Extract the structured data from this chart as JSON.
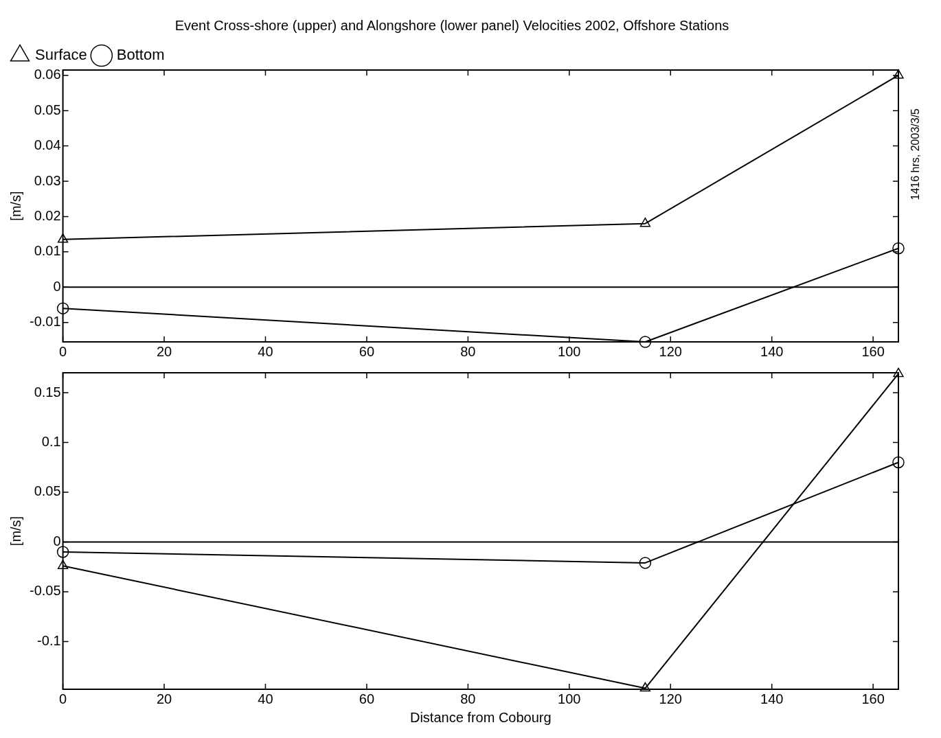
{
  "chart_data": [
    {
      "type": "line",
      "title": "Event Cross-shore (upper) and Alongshore (lower panel) Velocities 2002, Offshore Stations",
      "ylabel": "[m/s]",
      "x": [
        0,
        115,
        165
      ],
      "xlim": [
        0,
        165
      ],
      "xticks": [
        0,
        20,
        40,
        60,
        80,
        100,
        120,
        140,
        160
      ],
      "ylim": [
        -0.0155,
        0.0615
      ],
      "yticks": [
        -0.01,
        0,
        0.01,
        0.02,
        0.03,
        0.04,
        0.05,
        0.06
      ],
      "grid": false,
      "legend": "top left",
      "line_style": "solid",
      "ref_lines": [
        {
          "axis": "y",
          "value": 0,
          "color": "#000000"
        }
      ],
      "annotations": [
        "1416 hrs, 2003/3/5"
      ],
      "series": [
        {
          "name": "Surface",
          "color": "#000000",
          "marker": "triangle",
          "values": [
            0.0135,
            0.018,
            0.06
          ]
        },
        {
          "name": "Bottom",
          "color": "#000000",
          "marker": "circle",
          "values": [
            -0.006,
            -0.0155,
            0.011
          ]
        }
      ]
    },
    {
      "type": "line",
      "xlabel": "Distance from Cobourg",
      "ylabel": "[m/s]",
      "x": [
        0,
        115,
        165
      ],
      "xlim": [
        0,
        165
      ],
      "xticks": [
        0,
        20,
        40,
        60,
        80,
        100,
        120,
        140,
        160
      ],
      "ylim": [
        -0.148,
        0.17
      ],
      "yticks": [
        -0.1,
        -0.05,
        0,
        0.05,
        0.1,
        0.15
      ],
      "grid": false,
      "legend": false,
      "line_style": "solid",
      "ref_lines": [
        {
          "axis": "y",
          "value": 0,
          "color": "#000000"
        }
      ],
      "series": [
        {
          "color": "#000000",
          "marker": "triangle",
          "values": [
            -0.024,
            -0.147,
            0.169
          ]
        },
        {
          "color": "#000000",
          "marker": "circle",
          "values": [
            -0.01,
            -0.021,
            0.08
          ]
        }
      ]
    }
  ]
}
